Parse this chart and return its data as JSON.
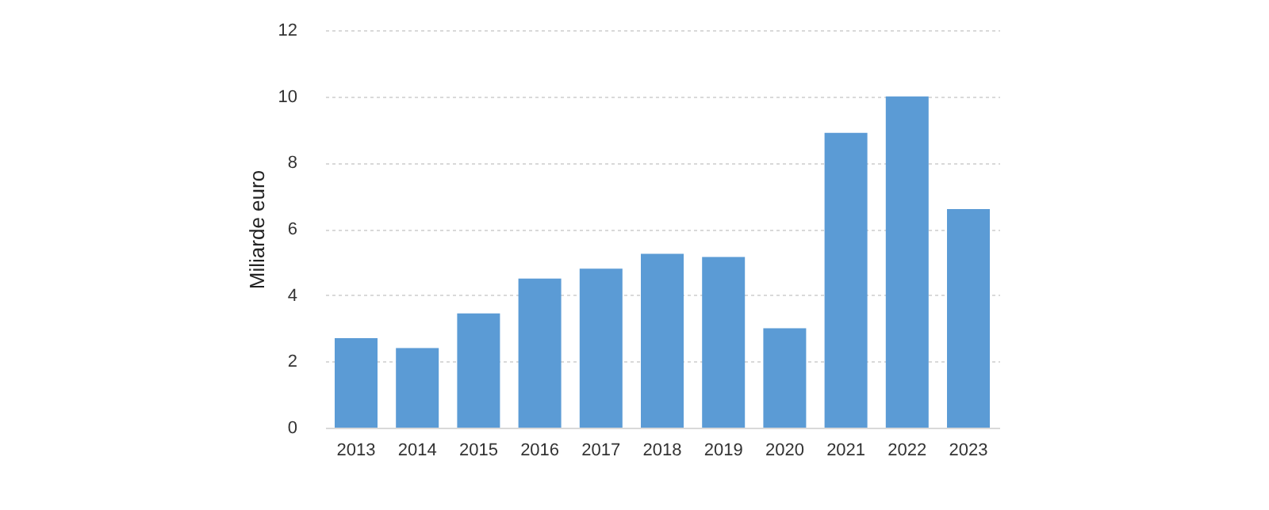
{
  "chart_data": {
    "type": "bar",
    "ylabel": "Miliarde euro",
    "categories": [
      "2013",
      "2014",
      "2015",
      "2016",
      "2017",
      "2018",
      "2019",
      "2020",
      "2021",
      "2022",
      "2023"
    ],
    "values": [
      2.7,
      2.4,
      3.45,
      4.5,
      4.8,
      5.25,
      5.15,
      3.0,
      8.9,
      10.0,
      6.6
    ],
    "color": "#5b9bd5",
    "ylim": [
      0,
      12
    ],
    "yticks": [
      0,
      2,
      4,
      6,
      8,
      10,
      12
    ],
    "grid": "y"
  }
}
